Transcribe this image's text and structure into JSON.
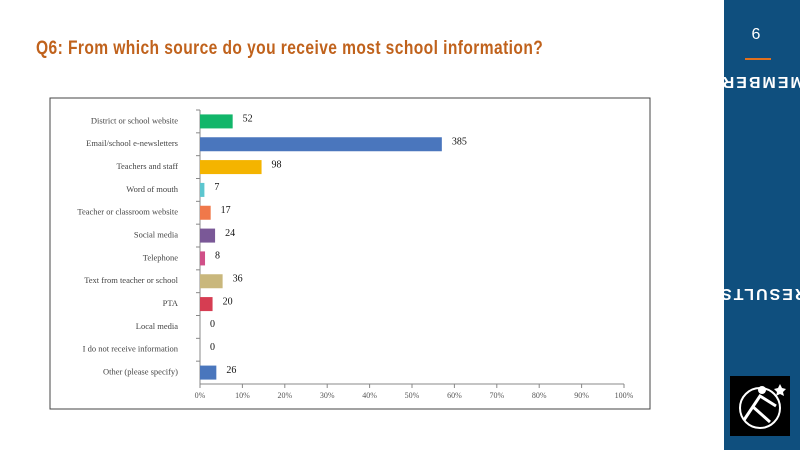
{
  "slide_number": "6",
  "sidebar_labels": [
    "MEMBERS",
    "RESULTS"
  ],
  "chart_data": {
    "type": "barh",
    "title": "Q6: From which source do you receive most school information?",
    "categories": [
      "District or school website",
      "Email/school e-newsletters",
      "Teachers and staff",
      "Word of mouth",
      "Teacher or classroom website",
      "Social media",
      "Telephone",
      "Text from teacher or school",
      "PTA",
      "Local media",
      "I do not receive information",
      "Other (please specify)"
    ],
    "values": [
      52,
      385,
      98,
      7,
      17,
      24,
      8,
      36,
      20,
      0,
      0,
      26
    ],
    "colors": [
      "#12b66a",
      "#4a76bd",
      "#f4b400",
      "#5cc6cf",
      "#f0784a",
      "#7a5897",
      "#d05088",
      "#c9b77c",
      "#d63d52",
      "#999999",
      "#999999",
      "#4a76bd"
    ],
    "xlim": [
      0,
      675
    ],
    "xticks": [
      {
        "value": 0,
        "label": "0%"
      },
      {
        "value": 67.5,
        "label": "10%"
      },
      {
        "value": 135,
        "label": "20%"
      },
      {
        "value": 202.5,
        "label": "30%"
      },
      {
        "value": 270,
        "label": "40%"
      },
      {
        "value": 337.5,
        "label": "50%"
      },
      {
        "value": 405,
        "label": "60%"
      },
      {
        "value": 472.5,
        "label": "70%"
      },
      {
        "value": 540,
        "label": "80%"
      },
      {
        "value": 607.5,
        "label": "90%"
      },
      {
        "value": 675,
        "label": "100%"
      }
    ]
  }
}
